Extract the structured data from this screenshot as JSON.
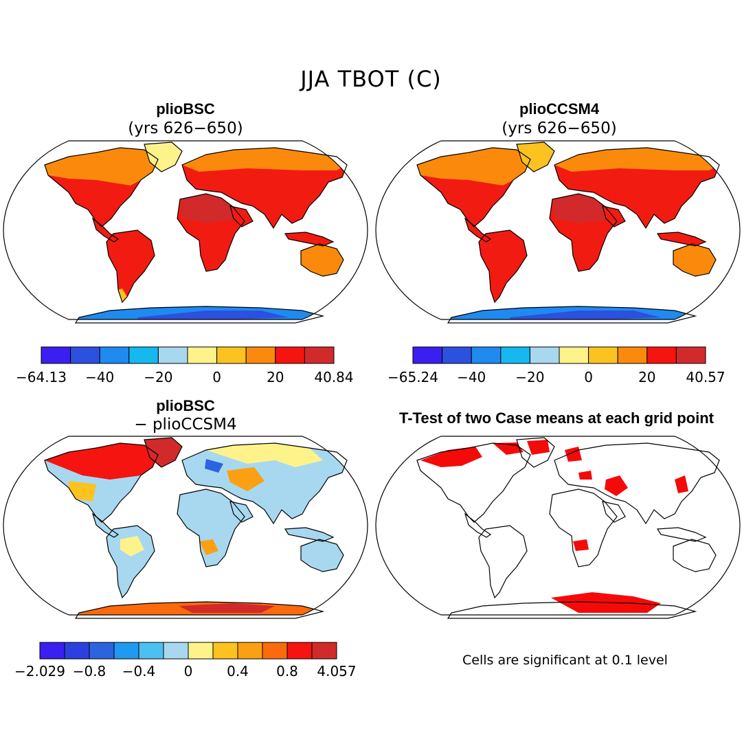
{
  "title": "JJA TBOT (C)",
  "panels": [
    {
      "title": "plioBSC",
      "subtitle": "(yrs 626−650)"
    },
    {
      "title": "plioCCSM4",
      "subtitle": "(yrs 626−650)"
    },
    {
      "title": "plioBSC",
      "subtitle": "− plioCCSM4"
    },
    {
      "title": "T-Test of two Case means at each grid point",
      "subtitle": ""
    }
  ],
  "colorbars": [
    {
      "labels": [
        "−64.13",
        "−40",
        "−20",
        "0",
        "20",
        "40.84"
      ],
      "colors": [
        "#3a1ff0",
        "#2c50e0",
        "#1f8af0",
        "#16b8f0",
        "#a7d8f0",
        "#fdf38a",
        "#fcc21f",
        "#fb8a0c",
        "#f51410",
        "#d22a2a"
      ]
    },
    {
      "labels": [
        "−65.24",
        "−40",
        "−20",
        "0",
        "20",
        "40.57"
      ],
      "colors": [
        "#3a1ff0",
        "#2c50e0",
        "#1f8af0",
        "#16b8f0",
        "#a7d8f0",
        "#fdf38a",
        "#fcc21f",
        "#fb8a0c",
        "#f51410",
        "#d22a2a"
      ]
    },
    {
      "labels": [
        "−2.029",
        "−0.8",
        "−0.4",
        "0",
        "0.4",
        "0.8",
        "4.057"
      ],
      "colors": [
        "#3a1ff0",
        "#2c40e0",
        "#2c64e0",
        "#1f9af0",
        "#4cc0f0",
        "#a7d8f0",
        "#fdf38a",
        "#fcc21f",
        "#fba012",
        "#fb6a0c",
        "#f51410",
        "#d22a2a"
      ]
    }
  ],
  "note": "Cells are significant at 0.1 level"
}
